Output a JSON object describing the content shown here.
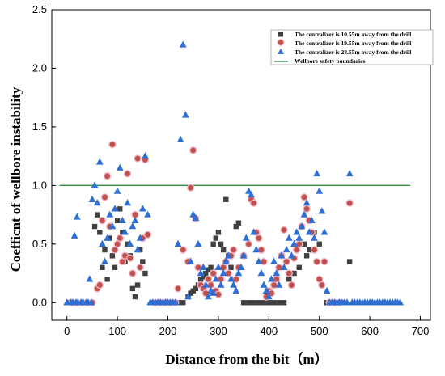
{
  "chart_data": {
    "type": "scatter",
    "xlabel": "Distance from the bit（m）",
    "ylabel": "Coefficnt of wellbore instability",
    "xlim": [
      -30,
      720
    ],
    "ylim": [
      -0.15,
      2.5
    ],
    "xticks": [
      "0",
      "100",
      "200",
      "300",
      "400",
      "500",
      "600",
      "700"
    ],
    "yticks": [
      "0.0",
      "0.5",
      "1.0",
      "1.5",
      "2.0",
      "2.5"
    ],
    "legend_position": "top-right",
    "series": [
      {
        "name": "The centralizer is 10.55m away from the drill",
        "marker": "square",
        "color": "#404040",
        "points": [
          [
            5,
            0
          ],
          [
            15,
            0
          ],
          [
            25,
            0
          ],
          [
            35,
            0
          ],
          [
            45,
            0
          ],
          [
            55,
            0.65
          ],
          [
            60,
            0.75
          ],
          [
            65,
            0.6
          ],
          [
            70,
            0.3
          ],
          [
            75,
            0.45
          ],
          [
            80,
            0.2
          ],
          [
            85,
            0.55
          ],
          [
            90,
            0.4
          ],
          [
            95,
            0.3
          ],
          [
            100,
            0.7
          ],
          [
            105,
            0.8
          ],
          [
            110,
            0.6
          ],
          [
            115,
            0.35
          ],
          [
            120,
            0.5
          ],
          [
            125,
            0.4
          ],
          [
            130,
            0.12
          ],
          [
            135,
            0.05
          ],
          [
            140,
            0.15
          ],
          [
            145,
            0.45
          ],
          [
            150,
            0.35
          ],
          [
            155,
            0.25
          ],
          [
            170,
            0
          ],
          [
            180,
            0
          ],
          [
            190,
            0
          ],
          [
            200,
            0
          ],
          [
            210,
            0
          ],
          [
            220,
            0
          ],
          [
            230,
            0
          ],
          [
            240,
            0.05
          ],
          [
            245,
            0.08
          ],
          [
            250,
            0.1
          ],
          [
            255,
            0.12
          ],
          [
            260,
            0.15
          ],
          [
            265,
            0.2
          ],
          [
            270,
            0.22
          ],
          [
            275,
            0.25
          ],
          [
            280,
            0.28
          ],
          [
            285,
            0.3
          ],
          [
            290,
            0.5
          ],
          [
            295,
            0.55
          ],
          [
            300,
            0.6
          ],
          [
            305,
            0.5
          ],
          [
            310,
            0.45
          ],
          [
            315,
            0.88
          ],
          [
            320,
            0.4
          ],
          [
            325,
            0.3
          ],
          [
            330,
            0.2
          ],
          [
            335,
            0.65
          ],
          [
            340,
            0.68
          ],
          [
            350,
            0
          ],
          [
            360,
            0
          ],
          [
            370,
            0
          ],
          [
            380,
            0
          ],
          [
            390,
            0
          ],
          [
            400,
            0
          ],
          [
            410,
            0
          ],
          [
            420,
            0
          ],
          [
            430,
            0
          ],
          [
            440,
            0.2
          ],
          [
            450,
            0.25
          ],
          [
            460,
            0.3
          ],
          [
            470,
            0.5
          ],
          [
            475,
            0.4
          ],
          [
            480,
            0.45
          ],
          [
            490,
            0.6
          ],
          [
            500,
            0.5
          ],
          [
            515,
            0
          ],
          [
            525,
            0
          ],
          [
            535,
            0
          ],
          [
            545,
            0
          ],
          [
            560,
            0.35
          ]
        ]
      },
      {
        "name": "The centralizer is 19.55m away from the drill",
        "marker": "circle",
        "color": "#c0504d",
        "points": [
          [
            10,
            0
          ],
          [
            20,
            0
          ],
          [
            30,
            0
          ],
          [
            40,
            0
          ],
          [
            50,
            0
          ],
          [
            60,
            0.12
          ],
          [
            65,
            0.15
          ],
          [
            70,
            0.7
          ],
          [
            75,
            0.9
          ],
          [
            80,
            1.08
          ],
          [
            85,
            0.65
          ],
          [
            90,
            1.35
          ],
          [
            95,
            0.45
          ],
          [
            100,
            0.5
          ],
          [
            105,
            0.55
          ],
          [
            110,
            0.35
          ],
          [
            115,
            0.4
          ],
          [
            120,
            1.1
          ],
          [
            125,
            0.38
          ],
          [
            130,
            0.25
          ],
          [
            135,
            0.75
          ],
          [
            140,
            1.23
          ],
          [
            145,
            0.3
          ],
          [
            150,
            0.55
          ],
          [
            155,
            1.22
          ],
          [
            160,
            0.58
          ],
          [
            175,
            0
          ],
          [
            185,
            0
          ],
          [
            195,
            0
          ],
          [
            205,
            0
          ],
          [
            215,
            0
          ],
          [
            220,
            0.12
          ],
          [
            230,
            0.45
          ],
          [
            240,
            0.35
          ],
          [
            245,
            0.98
          ],
          [
            250,
            1.3
          ],
          [
            255,
            0.72
          ],
          [
            260,
            0.3
          ],
          [
            265,
            0.15
          ],
          [
            270,
            0.12
          ],
          [
            275,
            0.08
          ],
          [
            280,
            0.2
          ],
          [
            285,
            0.15
          ],
          [
            290,
            0.25
          ],
          [
            295,
            0.1
          ],
          [
            300,
            0.07
          ],
          [
            305,
            0.2
          ],
          [
            310,
            0.3
          ],
          [
            315,
            0.35
          ],
          [
            320,
            0.25
          ],
          [
            325,
            0.4
          ],
          [
            330,
            0.45
          ],
          [
            335,
            0.2
          ],
          [
            340,
            0.3
          ],
          [
            350,
            0.4
          ],
          [
            360,
            0.5
          ],
          [
            365,
            0.88
          ],
          [
            370,
            0.85
          ],
          [
            375,
            0.6
          ],
          [
            380,
            0.55
          ],
          [
            385,
            0.45
          ],
          [
            390,
            0.35
          ],
          [
            395,
            0.05
          ],
          [
            400,
            0.1
          ],
          [
            405,
            0.08
          ],
          [
            410,
            0.15
          ],
          [
            415,
            0.2
          ],
          [
            420,
            0.3
          ],
          [
            425,
            0.4
          ],
          [
            430,
            0.62
          ],
          [
            435,
            0.35
          ],
          [
            440,
            0.25
          ],
          [
            445,
            0.15
          ],
          [
            450,
            0.38
          ],
          [
            455,
            0.45
          ],
          [
            460,
            0.5
          ],
          [
            465,
            0.65
          ],
          [
            470,
            0.9
          ],
          [
            475,
            0.8
          ],
          [
            480,
            0.7
          ],
          [
            485,
            0.6
          ],
          [
            490,
            0.45
          ],
          [
            495,
            0.35
          ],
          [
            500,
            0.2
          ],
          [
            505,
            0.15
          ],
          [
            510,
            0.35
          ],
          [
            520,
            0
          ],
          [
            530,
            0
          ],
          [
            540,
            0
          ],
          [
            560,
            0.85
          ]
        ]
      },
      {
        "name": "The centralizer is 28.55m away from the drill",
        "marker": "triangle",
        "color": "#2e6fd6",
        "points": [
          [
            0,
            0
          ],
          [
            8,
            0
          ],
          [
            12,
            0
          ],
          [
            18,
            0
          ],
          [
            22,
            0
          ],
          [
            28,
            0
          ],
          [
            32,
            0
          ],
          [
            38,
            0
          ],
          [
            42,
            0
          ],
          [
            48,
            0
          ],
          [
            15,
            0.57
          ],
          [
            20,
            0.73
          ],
          [
            45,
            0.2
          ],
          [
            50,
            0.88
          ],
          [
            55,
            1.0
          ],
          [
            60,
            0.85
          ],
          [
            65,
            1.2
          ],
          [
            70,
            0.5
          ],
          [
            75,
            0.35
          ],
          [
            80,
            0.55
          ],
          [
            85,
            0.75
          ],
          [
            90,
            0.65
          ],
          [
            95,
            0.8
          ],
          [
            100,
            0.95
          ],
          [
            105,
            1.15
          ],
          [
            110,
            0.7
          ],
          [
            115,
            0.6
          ],
          [
            120,
            0.85
          ],
          [
            125,
            0.5
          ],
          [
            130,
            0.65
          ],
          [
            135,
            0.7
          ],
          [
            140,
            0.45
          ],
          [
            145,
            0.55
          ],
          [
            150,
            0.8
          ],
          [
            155,
            1.25
          ],
          [
            160,
            0.75
          ],
          [
            165,
            0
          ],
          [
            170,
            0
          ],
          [
            175,
            0
          ],
          [
            180,
            0
          ],
          [
            185,
            0
          ],
          [
            190,
            0
          ],
          [
            195,
            0
          ],
          [
            200,
            0
          ],
          [
            205,
            0
          ],
          [
            210,
            0
          ],
          [
            215,
            0
          ],
          [
            220,
            0.5
          ],
          [
            225,
            1.39
          ],
          [
            230,
            2.2
          ],
          [
            235,
            1.6
          ],
          [
            240,
            0.05
          ],
          [
            245,
            0.35
          ],
          [
            250,
            0.75
          ],
          [
            255,
            0.72
          ],
          [
            260,
            0.5
          ],
          [
            265,
            0.25
          ],
          [
            270,
            0.3
          ],
          [
            275,
            0.15
          ],
          [
            280,
            0.05
          ],
          [
            285,
            0.1
          ],
          [
            290,
            0.08
          ],
          [
            295,
            0.2
          ],
          [
            300,
            0.3
          ],
          [
            305,
            0.15
          ],
          [
            310,
            0.25
          ],
          [
            315,
            0.35
          ],
          [
            320,
            0.4
          ],
          [
            325,
            0.2
          ],
          [
            330,
            0.15
          ],
          [
            335,
            0.1
          ],
          [
            340,
            0.25
          ],
          [
            345,
            0.3
          ],
          [
            350,
            0.4
          ],
          [
            355,
            0.55
          ],
          [
            360,
            0.95
          ],
          [
            365,
            0.92
          ],
          [
            370,
            0.6
          ],
          [
            375,
            0.45
          ],
          [
            380,
            0.35
          ],
          [
            385,
            0.25
          ],
          [
            390,
            0.15
          ],
          [
            395,
            0.1
          ],
          [
            400,
            0.05
          ],
          [
            405,
            0.2
          ],
          [
            410,
            0.35
          ],
          [
            415,
            0.25
          ],
          [
            420,
            0.15
          ],
          [
            425,
            0.4
          ],
          [
            430,
            0.3
          ],
          [
            435,
            0.45
          ],
          [
            440,
            0.55
          ],
          [
            445,
            0.4
          ],
          [
            450,
            0.5
          ],
          [
            455,
            0.6
          ],
          [
            460,
            0.55
          ],
          [
            465,
            0.65
          ],
          [
            470,
            0.75
          ],
          [
            475,
            0.85
          ],
          [
            480,
            0.6
          ],
          [
            485,
            0.7
          ],
          [
            490,
            0.55
          ],
          [
            495,
            1.1
          ],
          [
            500,
            0.95
          ],
          [
            505,
            0.78
          ],
          [
            510,
            0.6
          ],
          [
            515,
            0.1
          ],
          [
            520,
            0
          ],
          [
            525,
            0
          ],
          [
            530,
            0
          ],
          [
            535,
            0
          ],
          [
            540,
            0
          ],
          [
            545,
            0
          ],
          [
            550,
            0
          ],
          [
            555,
            0
          ],
          [
            560,
            1.1
          ],
          [
            565,
            0
          ],
          [
            570,
            0
          ],
          [
            575,
            0
          ],
          [
            580,
            0
          ],
          [
            585,
            0
          ],
          [
            590,
            0
          ],
          [
            595,
            0
          ],
          [
            600,
            0
          ],
          [
            605,
            0
          ],
          [
            610,
            0
          ],
          [
            615,
            0
          ],
          [
            620,
            0
          ],
          [
            625,
            0
          ],
          [
            630,
            0
          ],
          [
            635,
            0
          ],
          [
            640,
            0
          ],
          [
            645,
            0
          ],
          [
            650,
            0
          ],
          [
            655,
            0
          ],
          [
            660,
            0
          ]
        ]
      }
    ],
    "reference_line": {
      "name": "Wellbore safety boundaries",
      "y": 1.0,
      "x_range": [
        -15,
        680
      ],
      "color": "#2e8b3e"
    }
  }
}
